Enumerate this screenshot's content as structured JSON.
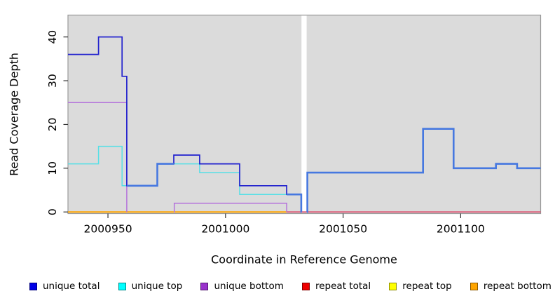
{
  "chart_data": {
    "type": "line",
    "subtype": "step",
    "title": "",
    "xlabel": "Coordinate in Reference Genome",
    "ylabel": "Read Coverage Depth",
    "xlim": [
      2000933,
      2001134
    ],
    "ylim": [
      0,
      45
    ],
    "xticks": [
      2000950,
      2001000,
      2001050,
      2001100
    ],
    "yticks": [
      0,
      10,
      20,
      30,
      40
    ],
    "grid": "off",
    "legend_position": "bottom",
    "panel_bg": "#DBDBDB",
    "gap_band": {
      "from": 2001032.3,
      "to": 2001034.5,
      "color": "#FFFFFF"
    },
    "series": [
      {
        "name": "repeat bottom",
        "color": "#FFA500",
        "lw": 2.0,
        "steps": [
          [
            2000933,
            0
          ]
        ],
        "end": 2001026
      },
      {
        "name": "repeat total",
        "color": "#DC4668",
        "lw": 1.6,
        "steps": [
          [
            2001026,
            0
          ]
        ],
        "end": 2001134
      },
      {
        "name": "unique bottom high",
        "color": "#B473DB",
        "lw": 1.5,
        "steps": [
          [
            2000933,
            25
          ],
          [
            2000958,
            0
          ]
        ],
        "end": 2000958
      },
      {
        "name": "unique bottom low",
        "color": "#B473DB",
        "lw": 1.5,
        "steps": [
          [
            2000978,
            0
          ],
          [
            2000978.2,
            2
          ],
          [
            2001026,
            0
          ]
        ],
        "end": 2001026
      },
      {
        "name": "unique top",
        "color": "#55DFE6",
        "lw": 1.5,
        "steps": [
          [
            2000933,
            11
          ],
          [
            2000946,
            15
          ],
          [
            2000956,
            6
          ],
          [
            2000971,
            11
          ],
          [
            2000989,
            9
          ],
          [
            2001006,
            4
          ]
        ],
        "end": 2001032.2
      },
      {
        "name": "unique total",
        "color": "#2121CE",
        "lw": 1.7,
        "steps": [
          [
            2000933,
            36
          ],
          [
            2000946,
            40
          ],
          [
            2000956,
            31
          ],
          [
            2000958,
            6
          ],
          [
            2000971,
            11
          ],
          [
            2000978,
            13
          ],
          [
            2000989,
            11
          ],
          [
            2001006,
            6
          ],
          [
            2001026,
            4
          ],
          [
            2001032.2,
            0
          ]
        ],
        "end": 2001032.3
      },
      {
        "name": "unique total top overlap a",
        "color": "#4678E0",
        "lw": 2.6,
        "steps": [
          [
            2000958,
            6
          ],
          [
            2000971,
            11
          ]
        ],
        "end": 2000978
      },
      {
        "name": "unique total top overlap b",
        "color": "#4678E0",
        "lw": 2.6,
        "steps": [
          [
            2001026,
            4
          ],
          [
            2001032.2,
            0
          ]
        ],
        "end": 2001032.3
      },
      {
        "name": "unique total top overlap right",
        "color": "#4678E0",
        "lw": 2.6,
        "steps": [
          [
            2001034.6,
            0
          ],
          [
            2001034.8,
            9
          ],
          [
            2001084,
            19
          ],
          [
            2001097,
            10
          ],
          [
            2001115,
            11
          ],
          [
            2001124,
            10
          ]
        ],
        "end": 2001134
      }
    ],
    "legend": [
      {
        "label": "unique total",
        "color": "#0000E6"
      },
      {
        "label": "unique top",
        "color": "#00FFFF"
      },
      {
        "label": "unique bottom",
        "color": "#9932CC"
      },
      {
        "label": "repeat total",
        "color": "#EE0000"
      },
      {
        "label": "repeat top",
        "color": "#FFFF00"
      },
      {
        "label": "repeat bottom",
        "color": "#FFA500"
      }
    ]
  }
}
